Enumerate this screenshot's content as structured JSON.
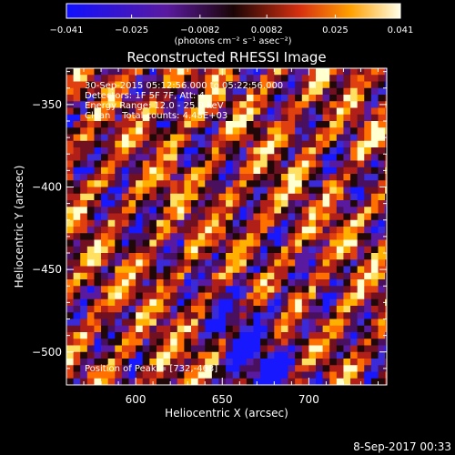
{
  "chart_data": {
    "type": "heatmap",
    "title": "Reconstructed RHESSI Image",
    "xlabel": "Heliocentric X (arcsec)",
    "ylabel": "Heliocentric Y (arcsec)",
    "xlim": [
      560,
      745
    ],
    "ylim": [
      -520,
      -328
    ],
    "x_ticks": [
      600,
      650,
      700
    ],
    "y_ticks": [
      -350,
      -400,
      -450,
      -500
    ],
    "colorbar": {
      "range": [
        -0.041,
        0.041
      ],
      "ticks": [
        -0.041,
        -0.025,
        -0.0082,
        0.0082,
        0.025,
        0.041
      ],
      "tick_labels": [
        "−0.041",
        "−0.025",
        "−0.0082",
        "0.0082",
        "0.025",
        "0.041"
      ],
      "units": "(photons cm⁻² s⁻¹ asec⁻²)"
    },
    "annotations": [
      "30-Sep-2015 05:12:56.000 to 05:22:56.000",
      "Detectors: 1F 5F 7F, Att: 4",
      "Energy Range: 12.0 - 25.0 keV",
      "Clean    Total counts: 4.48E+03"
    ],
    "peak_label": "Position of Peak = [732,-463]",
    "timestamp": "8-Sep-2017 00:33",
    "pixel_size_arcsec": 4,
    "pattern": "diagonal fringe stripes with bright alternating yellow/red and blue pixels"
  }
}
